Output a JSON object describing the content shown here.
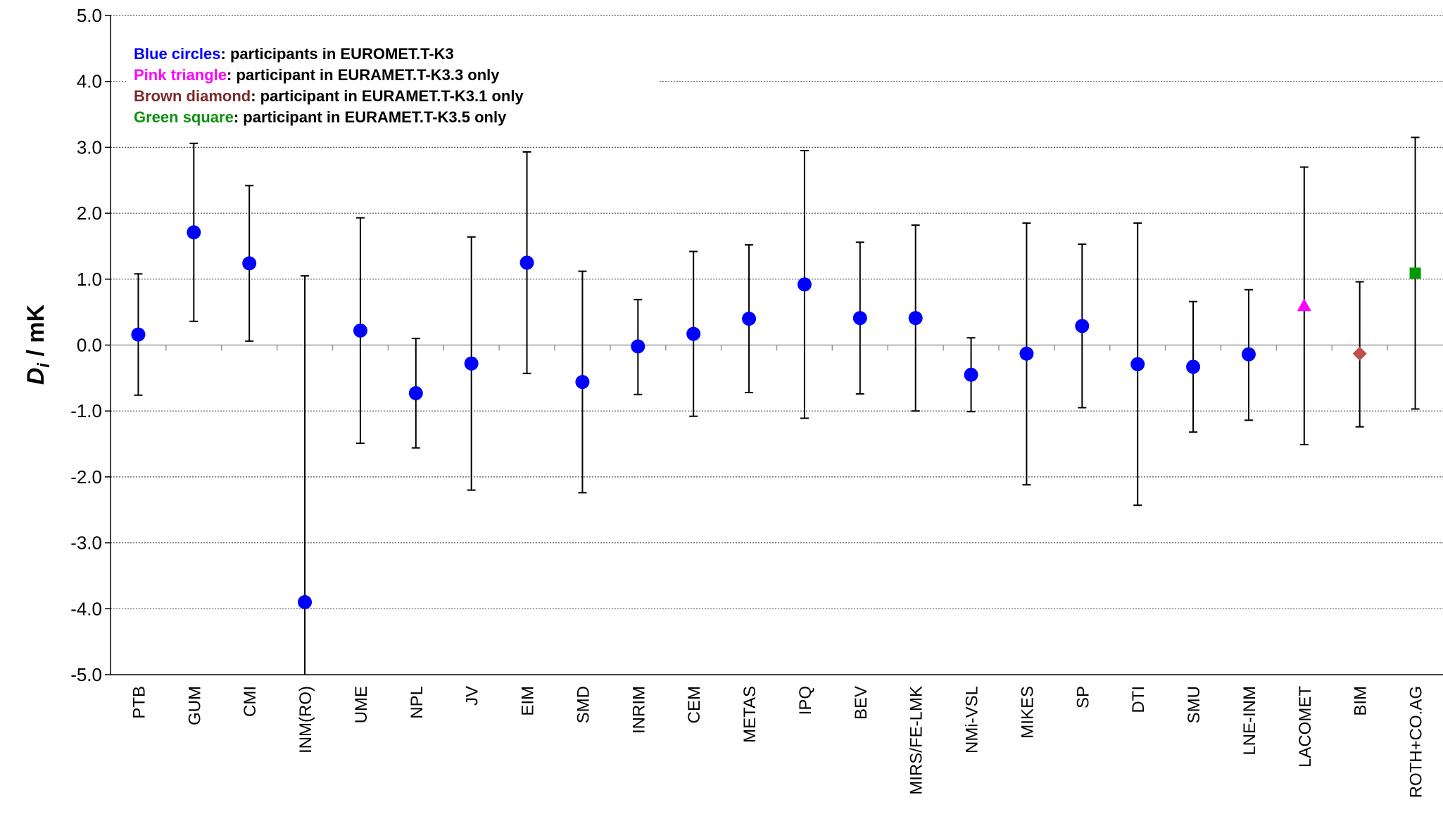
{
  "chart_data": {
    "type": "scatter",
    "title": "",
    "xlabel": "",
    "ylabel_main": "D",
    "ylabel_sub": "i",
    "ylabel_rest": " / mK",
    "ylim": [
      -5.0,
      5.0
    ],
    "yticks": [
      "5.0",
      "4.0",
      "3.0",
      "2.0",
      "1.0",
      "0.0",
      "-1.0",
      "-2.0",
      "-3.0",
      "-4.0",
      "-5.0"
    ],
    "ytick_values": [
      5,
      4,
      3,
      2,
      1,
      0,
      -1,
      -2,
      -3,
      -4,
      -5
    ],
    "grid": "horizontal dotted",
    "legend_position": "top-left",
    "legend": [
      {
        "key": "Blue circles",
        "text": ": participants in EUROMET.T-K3",
        "color": "#0000ff"
      },
      {
        "key": "Pink triangle",
        "text": ": participant in EURAMET.T-K3.3 only",
        "color": "#ff00ff"
      },
      {
        "key": "Brown diamond",
        "text": ": participant in EURAMET.T-K3.1 only",
        "color": "#7b2c2c"
      },
      {
        "key": "Green square",
        "text": ": participant in EURAMET.T-K3.5 only",
        "color": "#109010"
      }
    ],
    "colors": {
      "blue": "#0000ff",
      "pink": "#ff00ff",
      "brown": "#c0504d",
      "green": "#009900"
    },
    "points": [
      {
        "label": "PTB",
        "value": 0.16,
        "low": -0.76,
        "high": 1.08,
        "marker": "circle"
      },
      {
        "label": "GUM",
        "value": 1.71,
        "low": 0.36,
        "high": 3.06,
        "marker": "circle"
      },
      {
        "label": "CMI",
        "value": 1.24,
        "low": 0.06,
        "high": 2.42,
        "marker": "circle"
      },
      {
        "label": "INM(RO)",
        "value": -3.9,
        "low": -5.0,
        "high": 1.05,
        "marker": "circle"
      },
      {
        "label": "UME",
        "value": 0.22,
        "low": -1.49,
        "high": 1.93,
        "marker": "circle"
      },
      {
        "label": "NPL",
        "value": -0.73,
        "low": -1.56,
        "high": 0.1,
        "marker": "circle"
      },
      {
        "label": "JV",
        "value": -0.28,
        "low": -2.2,
        "high": 1.64,
        "marker": "circle"
      },
      {
        "label": "EIM",
        "value": 1.25,
        "low": -0.43,
        "high": 2.93,
        "marker": "circle"
      },
      {
        "label": "SMD",
        "value": -0.56,
        "low": -2.24,
        "high": 1.12,
        "marker": "circle"
      },
      {
        "label": "INRIM",
        "value": -0.02,
        "low": -0.75,
        "high": 0.69,
        "marker": "circle"
      },
      {
        "label": "CEM",
        "value": 0.17,
        "low": -1.08,
        "high": 1.42,
        "marker": "circle"
      },
      {
        "label": "METAS",
        "value": 0.4,
        "low": -0.72,
        "high": 1.52,
        "marker": "circle"
      },
      {
        "label": "IPQ",
        "value": 0.92,
        "low": -1.11,
        "high": 2.95,
        "marker": "circle"
      },
      {
        "label": "BEV",
        "value": 0.41,
        "low": -0.74,
        "high": 1.56,
        "marker": "circle"
      },
      {
        "label": "MIRS/FE-LMK",
        "value": 0.41,
        "low": -1.0,
        "high": 1.82,
        "marker": "circle"
      },
      {
        "label": "NMi-VSL",
        "value": -0.45,
        "low": -1.01,
        "high": 0.11,
        "marker": "circle"
      },
      {
        "label": "MIKES",
        "value": -0.13,
        "low": -2.12,
        "high": 1.85,
        "marker": "circle"
      },
      {
        "label": "SP",
        "value": 0.29,
        "low": -0.95,
        "high": 1.53,
        "marker": "circle"
      },
      {
        "label": "DTI",
        "value": -0.29,
        "low": -2.43,
        "high": 1.85,
        "marker": "circle"
      },
      {
        "label": "SMU",
        "value": -0.33,
        "low": -1.32,
        "high": 0.66,
        "marker": "circle"
      },
      {
        "label": "LNE-INM",
        "value": -0.14,
        "low": -1.14,
        "high": 0.84,
        "marker": "circle"
      },
      {
        "label": "LACOMET",
        "value": 0.6,
        "low": -1.51,
        "high": 2.7,
        "marker": "triangle"
      },
      {
        "label": "BIM",
        "value": -0.13,
        "low": -1.24,
        "high": 0.96,
        "marker": "diamond"
      },
      {
        "label": "ROTH+CO.AG",
        "value": 1.09,
        "low": -0.97,
        "high": 3.15,
        "marker": "square"
      }
    ]
  }
}
